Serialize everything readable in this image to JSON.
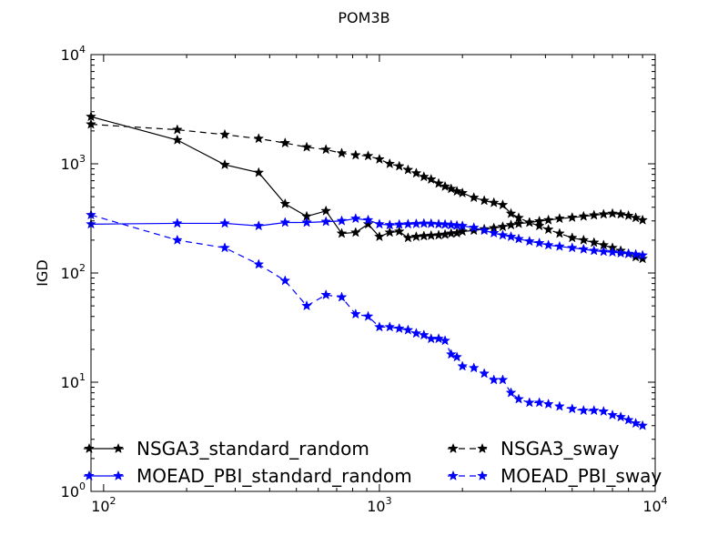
{
  "chart_data": {
    "type": "line",
    "title": "POM3B",
    "xlabel": "",
    "ylabel": "IGD",
    "xscale": "log",
    "yscale": "log",
    "xlim": [
      90,
      10000
    ],
    "ylim": [
      1,
      10000
    ],
    "x_ticks": [
      {
        "value": 100,
        "label": "10",
        "exp": "2"
      },
      {
        "value": 1000,
        "label": "10",
        "exp": "3"
      },
      {
        "value": 10000,
        "label": "10",
        "exp": "4"
      }
    ],
    "y_ticks": [
      {
        "value": 1,
        "label": "10",
        "exp": "0"
      },
      {
        "value": 10,
        "label": "10",
        "exp": "1"
      },
      {
        "value": 100,
        "label": "10",
        "exp": "2"
      },
      {
        "value": 1000,
        "label": "10",
        "exp": "3"
      },
      {
        "value": 10000,
        "label": "10",
        "exp": "4"
      }
    ],
    "grid": false,
    "legend_position": "lower",
    "series": [
      {
        "name": "NSGA3_standard_random",
        "color": "#000000",
        "linestyle": "solid",
        "marker": "star",
        "x": [
          90,
          185,
          275,
          365,
          455,
          545,
          640,
          730,
          820,
          910,
          1000,
          1090,
          1180,
          1270,
          1360,
          1450,
          1540,
          1640,
          1730,
          1820,
          1910,
          2000,
          2200,
          2400,
          2600,
          2800,
          3000,
          3200,
          3500,
          3800,
          4100,
          4500,
          5000,
          5500,
          6000,
          6500,
          7000,
          7500,
          8000,
          8500,
          9000
        ],
        "y": [
          2700,
          1650,
          980,
          830,
          430,
          330,
          370,
          230,
          235,
          280,
          215,
          235,
          240,
          210,
          215,
          218,
          220,
          222,
          225,
          230,
          232,
          240,
          245,
          252,
          258,
          265,
          275,
          283,
          290,
          298,
          305,
          315,
          322,
          330,
          338,
          345,
          350,
          345,
          335,
          320,
          305
        ]
      },
      {
        "name": "NSGA3_sway",
        "color": "#000000",
        "linestyle": "dashed",
        "marker": "star",
        "x": [
          90,
          185,
          275,
          365,
          455,
          545,
          640,
          730,
          820,
          910,
          1000,
          1090,
          1180,
          1270,
          1360,
          1450,
          1540,
          1640,
          1730,
          1820,
          1910,
          2000,
          2200,
          2400,
          2600,
          2800,
          3000,
          3200,
          3500,
          3800,
          4100,
          4500,
          5000,
          5500,
          6000,
          6500,
          7000,
          7500,
          8000,
          8500,
          9000
        ],
        "y": [
          2300,
          2050,
          1850,
          1700,
          1550,
          1420,
          1350,
          1250,
          1200,
          1180,
          1100,
          1000,
          950,
          880,
          820,
          760,
          720,
          660,
          620,
          590,
          560,
          540,
          490,
          460,
          440,
          420,
          350,
          320,
          290,
          270,
          250,
          230,
          210,
          200,
          190,
          180,
          170,
          160,
          150,
          140,
          135
        ]
      },
      {
        "name": "MOEAD_PBI_standard_random",
        "color": "#0000ff",
        "linestyle": "solid",
        "marker": "star",
        "x": [
          90,
          185,
          275,
          365,
          455,
          545,
          640,
          730,
          820,
          910,
          1000,
          1090,
          1180,
          1270,
          1360,
          1450,
          1540,
          1640,
          1730,
          1820,
          1910,
          2000,
          2200,
          2400,
          2600,
          2800,
          3000,
          3200,
          3500,
          3800,
          4100,
          4500,
          5000,
          5500,
          6000,
          6500,
          7000,
          7500,
          8000,
          8500,
          9000
        ],
        "y": [
          280,
          285,
          285,
          270,
          290,
          290,
          295,
          300,
          315,
          305,
          280,
          275,
          278,
          280,
          282,
          284,
          283,
          280,
          278,
          275,
          272,
          270,
          260,
          245,
          232,
          222,
          215,
          205,
          195,
          188,
          180,
          175,
          170,
          165,
          160,
          157,
          155,
          152,
          150,
          148,
          145
        ]
      },
      {
        "name": "MOEAD_PBI_sway",
        "color": "#0000ff",
        "linestyle": "dashed",
        "marker": "star",
        "x": [
          90,
          185,
          275,
          365,
          455,
          545,
          640,
          730,
          820,
          910,
          1000,
          1090,
          1180,
          1270,
          1360,
          1450,
          1540,
          1640,
          1730,
          1820,
          1910,
          2000,
          2200,
          2400,
          2600,
          2800,
          3000,
          3200,
          3500,
          3800,
          4100,
          4500,
          5000,
          5500,
          6000,
          6500,
          7000,
          7500,
          8000,
          8500,
          9000
        ],
        "y": [
          340,
          200,
          170,
          120,
          85,
          50,
          63,
          60,
          42,
          40,
          32,
          32,
          31,
          30,
          28,
          27,
          25,
          25,
          24,
          18,
          17,
          14,
          13.5,
          12,
          10.5,
          10.5,
          8,
          7,
          6.5,
          6.5,
          6.3,
          6.0,
          5.7,
          5.5,
          5.5,
          5.4,
          5.0,
          4.8,
          4.5,
          4.2,
          4.0
        ]
      }
    ]
  }
}
